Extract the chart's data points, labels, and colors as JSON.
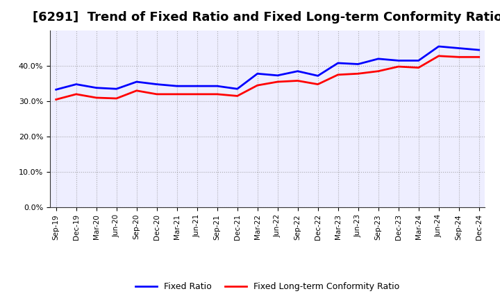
{
  "title": "[6291]  Trend of Fixed Ratio and Fixed Long-term Conformity Ratio",
  "labels": [
    "Sep-19",
    "Dec-19",
    "Mar-20",
    "Jun-20",
    "Sep-20",
    "Dec-20",
    "Mar-21",
    "Jun-21",
    "Sep-21",
    "Dec-21",
    "Mar-22",
    "Jun-22",
    "Sep-22",
    "Dec-22",
    "Mar-23",
    "Jun-23",
    "Sep-23",
    "Dec-23",
    "Mar-24",
    "Jun-24",
    "Sep-24",
    "Dec-24"
  ],
  "fixed_ratio": [
    33.3,
    34.8,
    33.8,
    33.5,
    35.5,
    34.8,
    34.3,
    34.3,
    34.3,
    33.5,
    37.8,
    37.3,
    38.5,
    37.2,
    40.8,
    40.5,
    42.0,
    41.5,
    41.5,
    45.5,
    45.0,
    44.5
  ],
  "fixed_lt_ratio": [
    30.5,
    32.0,
    31.0,
    30.8,
    33.0,
    32.0,
    32.0,
    32.0,
    32.0,
    31.5,
    34.5,
    35.5,
    35.8,
    34.8,
    37.5,
    37.8,
    38.5,
    39.8,
    39.5,
    42.8,
    42.5,
    42.5
  ],
  "fixed_ratio_color": "#0000FF",
  "fixed_lt_ratio_color": "#FF0000",
  "ylim": [
    0,
    50
  ],
  "yticks": [
    0,
    10,
    20,
    30,
    40
  ],
  "background_color": "#FFFFFF",
  "plot_bg_color": "#EEEEFF",
  "grid_color": "#888888",
  "title_fontsize": 13,
  "legend_labels": [
    "Fixed Ratio",
    "Fixed Long-term Conformity Ratio"
  ]
}
